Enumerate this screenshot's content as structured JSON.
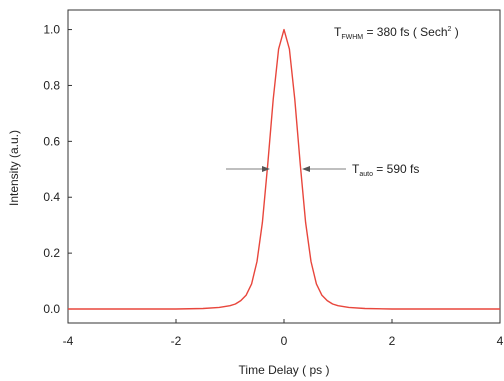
{
  "chart_data": {
    "type": "line",
    "xlabel": "Time Delay  ( ps )",
    "ylabel": "Intensity (a.u.)",
    "xlim": [
      -4,
      4
    ],
    "ylim": [
      -0.05,
      1.07
    ],
    "xticks": [
      -4,
      -2,
      0,
      2,
      4
    ],
    "xtick_labels": [
      "-4",
      "-2",
      "0",
      "2",
      "4"
    ],
    "yticks": [
      0.0,
      0.2,
      0.4,
      0.6,
      0.8,
      1.0
    ],
    "ytick_labels": [
      "0.0",
      "0.2",
      "0.4",
      "0.6",
      "0.8",
      "1.0"
    ],
    "grid": false,
    "series": [
      {
        "color": "#e8463c",
        "x": [
          -4.0,
          -3.0,
          -2.0,
          -1.5,
          -1.2,
          -1.0,
          -0.9,
          -0.8,
          -0.7,
          -0.6,
          -0.5,
          -0.4,
          -0.3,
          -0.2,
          -0.1,
          0.0,
          0.1,
          0.2,
          0.3,
          0.4,
          0.5,
          0.6,
          0.7,
          0.8,
          0.9,
          1.0,
          1.2,
          1.5,
          2.0,
          3.0,
          4.0
        ],
        "y": [
          0.0,
          0.0,
          0.0,
          0.002,
          0.006,
          0.012,
          0.018,
          0.03,
          0.05,
          0.09,
          0.17,
          0.31,
          0.52,
          0.75,
          0.93,
          1.0,
          0.93,
          0.75,
          0.52,
          0.31,
          0.17,
          0.09,
          0.05,
          0.03,
          0.018,
          0.012,
          0.006,
          0.002,
          0.0,
          0.0,
          0.0
        ]
      }
    ],
    "annotations": {
      "fwhm": {
        "main": "T",
        "sub": "FWHM",
        "text": " = 380 fs ( Sech",
        "sup": "2",
        "end": " )"
      },
      "auto": {
        "main": "T",
        "sub": "auto",
        "text": " = 590 fs"
      }
    }
  }
}
